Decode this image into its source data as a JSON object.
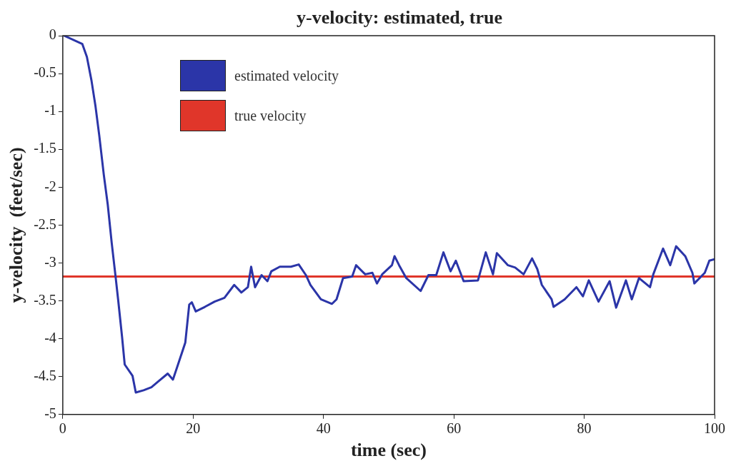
{
  "chart_data": {
    "type": "line",
    "title": "y-velocity: estimated, true",
    "xlabel": "time (sec)",
    "ylabel": "y-velocity  (feet/sec)",
    "xlim": [
      0,
      100
    ],
    "xticks": [
      0,
      20,
      40,
      60,
      80,
      100
    ],
    "ylim": [
      -5,
      0
    ],
    "yticks": [
      -5,
      -4.5,
      -4,
      -3.5,
      -3,
      -2.5,
      -2,
      -1.5,
      -1,
      -0.5,
      0
    ],
    "grid": false,
    "legend": "top left",
    "marker": "none",
    "line_style": "solid",
    "series": [
      {
        "name": "estimated velocity",
        "color": "#2b35a8",
        "x": [
          0.2,
          3,
          3.7,
          4.4,
          5,
          5.6,
          6.3,
          6.9,
          7.5,
          8.1,
          8.5,
          9.1,
          9.5,
          10.7,
          11.2,
          12.4,
          13.6,
          14.7,
          16.1,
          16.9,
          17.8,
          18.8,
          19.4,
          19.8,
          20.4,
          21.8,
          23.3,
          24.8,
          26.3,
          27.4,
          28.4,
          28.9,
          29.5,
          30.5,
          31.4,
          32,
          33.3,
          35,
          36.2,
          37.3,
          38,
          39.6,
          41.3,
          42,
          43,
          44.4,
          45,
          46.4,
          47.5,
          48.2,
          49,
          50.5,
          50.9,
          51.6,
          52.7,
          54.9,
          56.1,
          57.3,
          58.4,
          59.5,
          60.3,
          61.5,
          63.7,
          64.9,
          66,
          66.6,
          68.3,
          69.4,
          70.7,
          72,
          72.8,
          73.5,
          75,
          75.3,
          77,
          78.8,
          79.8,
          80.7,
          82.2,
          83.9,
          84.9,
          86.4,
          87.3,
          88.4,
          90.1,
          90.6,
          92.1,
          93.2,
          94.1,
          95.5,
          96.6,
          96.9,
          98.5,
          99.2,
          100
        ],
        "values": [
          0,
          -0.11,
          -0.28,
          -0.59,
          -0.92,
          -1.32,
          -1.84,
          -2.23,
          -2.73,
          -3.18,
          -3.49,
          -3.98,
          -4.34,
          -4.49,
          -4.71,
          -4.68,
          -4.64,
          -4.56,
          -4.46,
          -4.54,
          -4.31,
          -4.05,
          -3.55,
          -3.52,
          -3.64,
          -3.58,
          -3.51,
          -3.46,
          -3.29,
          -3.39,
          -3.32,
          -3.05,
          -3.32,
          -3.16,
          -3.24,
          -3.11,
          -3.05,
          -3.05,
          -3.02,
          -3.16,
          -3.29,
          -3.48,
          -3.54,
          -3.48,
          -3.2,
          -3.18,
          -3.03,
          -3.15,
          -3.13,
          -3.27,
          -3.15,
          -3.03,
          -2.91,
          -3.03,
          -3.2,
          -3.37,
          -3.16,
          -3.16,
          -2.86,
          -3.11,
          -2.97,
          -3.24,
          -3.23,
          -2.86,
          -3.15,
          -2.87,
          -3.03,
          -3.06,
          -3.15,
          -2.94,
          -3.08,
          -3.29,
          -3.48,
          -3.58,
          -3.48,
          -3.32,
          -3.44,
          -3.23,
          -3.51,
          -3.24,
          -3.59,
          -3.23,
          -3.48,
          -3.2,
          -3.32,
          -3.15,
          -2.81,
          -3.03,
          -2.78,
          -2.91,
          -3.13,
          -3.27,
          -3.13,
          -2.97,
          -2.95
        ]
      },
      {
        "name": "true velocity",
        "color": "#e0362a",
        "x": [
          0,
          100
        ],
        "values": [
          -3.18,
          -3.18
        ]
      }
    ]
  }
}
